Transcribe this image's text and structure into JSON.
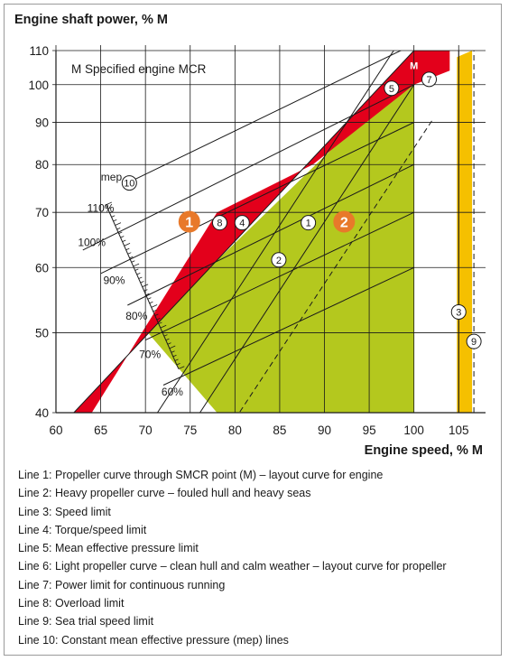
{
  "chart_data": {
    "type": "line",
    "title": "Engine shaft power, % M",
    "xlabel": "Engine speed, % M",
    "ylabel": "Engine shaft power, % M",
    "y_scale": "log",
    "xlim": [
      60,
      108
    ],
    "ylim": [
      40,
      110
    ],
    "x_ticks": [
      60,
      65,
      70,
      75,
      80,
      85,
      90,
      95,
      100,
      105
    ],
    "x_tick_labels": [
      "60",
      "65",
      "70",
      "75",
      "80",
      "85",
      "90",
      "95",
      "100",
      "105"
    ],
    "y_ticks": [
      40,
      50,
      60,
      70,
      80,
      90,
      100,
      110
    ],
    "y_tick_labels": [
      "40",
      "50",
      "60",
      "70",
      "80",
      "90",
      "100",
      "110"
    ],
    "grid": true,
    "colors": {
      "green": "#b4c81e",
      "red": "#e3001b",
      "yellow": "#f5c000",
      "badge_orange": "#e8792a"
    },
    "note": "M  Specified engine MCR",
    "m_label": "M",
    "mep_header": "mep",
    "mep_labels": [
      {
        "text": "110%",
        "speed": 65,
        "power": 71
      },
      {
        "text": "100%",
        "speed": 64,
        "power": 64.5
      },
      {
        "text": "90%",
        "speed": 66.5,
        "power": 58
      },
      {
        "text": "80%",
        "speed": 69,
        "power": 52.5
      },
      {
        "text": "70%",
        "speed": 70.5,
        "power": 47.2
      },
      {
        "text": "60%",
        "speed": 73,
        "power": 42.5
      }
    ],
    "areas": [
      {
        "name": "continuous running area",
        "color": "#b4c81e",
        "points": [
          [
            78,
            40
          ],
          [
            70,
            50.4
          ],
          [
            92.5,
            87
          ],
          [
            100,
            100
          ],
          [
            100,
            40
          ]
        ]
      },
      {
        "name": "overload area",
        "color": "#e3001b",
        "points": [
          [
            62,
            40
          ],
          [
            64,
            40
          ],
          [
            78,
            70
          ],
          [
            88.7,
            80
          ],
          [
            100,
            100
          ],
          [
            104,
            104
          ],
          [
            104,
            110
          ],
          [
            100,
            110
          ]
        ]
      },
      {
        "name": "sea trial area",
        "color": "#f5c000",
        "points": [
          [
            104.8,
            40
          ],
          [
            106.5,
            40
          ],
          [
            106.5,
            110
          ],
          [
            104.8,
            108
          ]
        ]
      }
    ],
    "series": [
      {
        "name": "Line 1",
        "points": [
          [
            60,
            21.6
          ],
          [
            100,
            100
          ]
        ],
        "style": "solid"
      },
      {
        "name": "Line 2",
        "points": [
          [
            60,
            25.9
          ],
          [
            100,
            120
          ]
        ],
        "style": "solid"
      },
      {
        "name": "Line 3",
        "points": [
          [
            105,
            40
          ],
          [
            105,
            110
          ]
        ],
        "style": "solid"
      },
      {
        "name": "Line 5",
        "points": [
          [
            62,
            40
          ],
          [
            100,
            110
          ]
        ],
        "style": "solid"
      },
      {
        "name": "Line 6",
        "points": [
          [
            60,
            18.4
          ],
          [
            102,
            90.4
          ]
        ],
        "style": "dashed"
      },
      {
        "name": "Line 7",
        "points": [
          [
            100,
            110
          ],
          [
            104,
            110
          ]
        ],
        "style": "solid"
      },
      {
        "name": "Line 9",
        "points": [
          [
            106.7,
            40
          ],
          [
            106.7,
            110
          ]
        ],
        "style": "dashed"
      },
      {
        "name": "Line 10 (mep 110%)",
        "points": [
          [
            68,
            76
          ],
          [
            100,
            112
          ]
        ],
        "style": "solid"
      },
      {
        "name": "Line 10 (mep 100%)",
        "points": [
          [
            63,
            63
          ],
          [
            100,
            100
          ]
        ],
        "style": "solid"
      },
      {
        "name": "Line 10 (mep 90%)",
        "points": [
          [
            65,
            59
          ],
          [
            100,
            90
          ]
        ],
        "style": "solid"
      },
      {
        "name": "Line 10 (mep 80%)",
        "points": [
          [
            68,
            54
          ],
          [
            100,
            80
          ]
        ],
        "style": "solid"
      },
      {
        "name": "Line 10 (mep 70%)",
        "points": [
          [
            70,
            49
          ],
          [
            100,
            70
          ]
        ],
        "style": "solid"
      },
      {
        "name": "Line 10 (mep 60%)",
        "points": [
          [
            72,
            43.2
          ],
          [
            100,
            60
          ]
        ],
        "style": "solid"
      }
    ],
    "markers": [
      {
        "label": "10",
        "speed": 68.2,
        "power": 76
      },
      {
        "label": "8",
        "speed": 78.3,
        "power": 68
      },
      {
        "label": "4",
        "speed": 80.8,
        "power": 68
      },
      {
        "label": "1",
        "speed": 88.2,
        "power": 68
      },
      {
        "label": "2",
        "speed": 84.9,
        "power": 61.3
      },
      {
        "label": "5",
        "speed": 97.5,
        "power": 99
      },
      {
        "label": "7",
        "speed": 101.7,
        "power": 101.5
      },
      {
        "label": "3",
        "speed": 105,
        "power": 53
      },
      {
        "label": "9",
        "speed": 106.7,
        "power": 48.8
      }
    ],
    "badges": [
      {
        "label": "1",
        "speed": 74.9,
        "power": 68.2
      },
      {
        "label": "2",
        "speed": 92.2,
        "power": 68.2
      }
    ],
    "legend_lines": [
      "Line 1: Propeller curve through SMCR point (M) – layout curve for engine",
      "Line 2: Heavy propeller curve – fouled hull and heavy seas",
      "Line 3: Speed limit",
      "Line 4: Torque/speed limit",
      "Line 5: Mean effective pressure limit",
      "Line 6: Light propeller curve – clean hull and calm weather – layout curve for propeller",
      "Line 7: Power limit for continuous running",
      "Line 8: Overload limit",
      "Line 9: Sea trial speed limit",
      "Line 10: Constant mean effective pressure (mep) lines"
    ]
  }
}
